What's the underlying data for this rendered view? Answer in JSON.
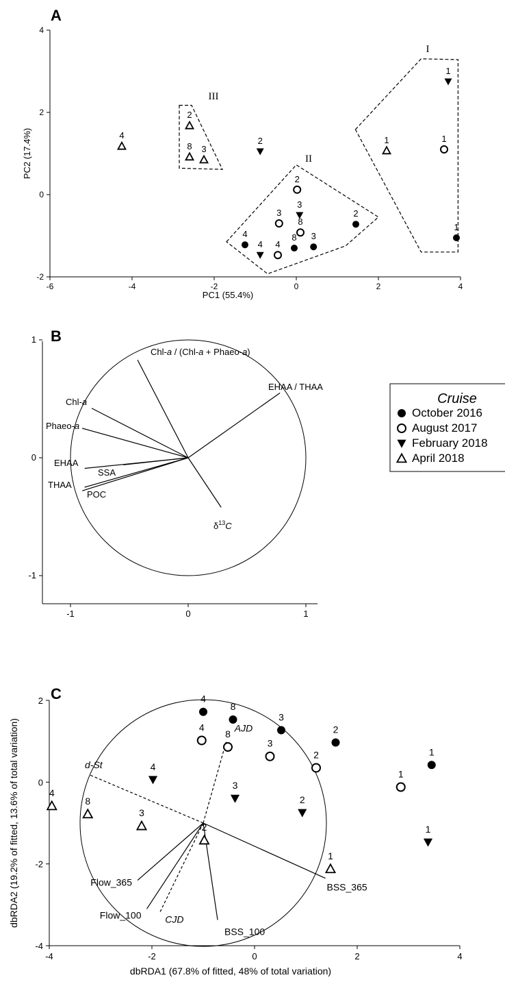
{
  "chart_data": [
    {
      "panel": "A",
      "type": "scatter",
      "xlabel": "PC1 (55.4%)",
      "ylabel": "PC2 (17.4%)",
      "xlim": [
        -6,
        4
      ],
      "ylim": [
        -2,
        4
      ],
      "xticks": [
        "-6",
        "-4",
        "-2",
        "0",
        "2",
        "4"
      ],
      "yticks": [
        "-2",
        "0",
        "2",
        "4"
      ],
      "series": [
        {
          "cruise": "October 2016",
          "marker": "circle-filled",
          "points": [
            {
              "x": 3.9,
              "y": -1.05,
              "label": "1"
            },
            {
              "x": 1.45,
              "y": -0.72,
              "label": "2"
            },
            {
              "x": 0.42,
              "y": -1.27,
              "label": "3"
            },
            {
              "x": -1.25,
              "y": -1.22,
              "label": "4"
            },
            {
              "x": -0.05,
              "y": -1.3,
              "label": "8"
            }
          ]
        },
        {
          "cruise": "August 2017",
          "marker": "circle-open",
          "points": [
            {
              "x": 3.6,
              "y": 1.1,
              "label": "1"
            },
            {
              "x": 0.02,
              "y": 0.12,
              "label": "2"
            },
            {
              "x": -0.42,
              "y": -0.7,
              "label": "3"
            },
            {
              "x": -0.45,
              "y": -1.47,
              "label": "4"
            },
            {
              "x": 0.1,
              "y": -0.92,
              "label": "8"
            }
          ]
        },
        {
          "cruise": "February 2018",
          "marker": "triangle-down-filled",
          "points": [
            {
              "x": 3.7,
              "y": 2.75,
              "label": "1"
            },
            {
              "x": -0.88,
              "y": 1.05,
              "label": "2"
            },
            {
              "x": 0.08,
              "y": -0.5,
              "label": "3"
            },
            {
              "x": -0.88,
              "y": -1.47,
              "label": "4"
            }
          ]
        },
        {
          "cruise": "April 2018",
          "marker": "triangle-up-open",
          "points": [
            {
              "x": 2.2,
              "y": 1.07,
              "label": "1"
            },
            {
              "x": -2.6,
              "y": 1.68,
              "label": "2"
            },
            {
              "x": -2.25,
              "y": 0.85,
              "label": "3"
            },
            {
              "x": -4.25,
              "y": 1.18,
              "label": "4"
            },
            {
              "x": -2.6,
              "y": 0.92,
              "label": "8"
            }
          ]
        }
      ],
      "groups": [
        {
          "label": "I",
          "polygon": [
            [
              1.6,
              1.6
            ],
            [
              3.2,
              3.32
            ],
            [
              4.1,
              3.3
            ],
            [
              4.1,
              -1.38
            ],
            [
              3.2,
              -1.38
            ]
          ],
          "label_at": [
            3.13,
            3.5
          ]
        },
        {
          "label": "II",
          "polygon": [
            [
              -1.7,
              -1.15
            ],
            [
              0.0,
              0.72
            ],
            [
              2.0,
              -0.55
            ],
            [
              1.2,
              -1.25
            ],
            [
              -0.7,
              -1.93
            ]
          ],
          "label_at": [
            0.3,
            0.75
          ]
        },
        {
          "label": "III",
          "polygon": [
            [
              -2.85,
              2.18
            ],
            [
              -2.55,
              2.18
            ],
            [
              -1.8,
              0.62
            ],
            [
              -2.85,
              0.65
            ]
          ],
          "label_at": [
            -2.02,
            2.1
          ]
        }
      ]
    },
    {
      "panel": "B",
      "type": "biplot",
      "xlim": [
        -1.25,
        1.1
      ],
      "ylim": [
        -1.25,
        1.0
      ],
      "xticks": [
        "-1",
        "0",
        "1"
      ],
      "yticks": [
        "-1",
        "0",
        "1"
      ],
      "circle_radius": 1,
      "vectors": [
        {
          "name": "Chl-a / (Chl-a + Phaeo-a)",
          "x": -0.43,
          "y": 0.83
        },
        {
          "name": "Chl-a",
          "x": -0.82,
          "y": 0.42
        },
        {
          "name": "Phaeo-a",
          "x": -0.9,
          "y": 0.25
        },
        {
          "name": "EHAA",
          "x": -0.88,
          "y": -0.09
        },
        {
          "name": "SSA",
          "x": -0.55,
          "y": -0.06
        },
        {
          "name": "THAA",
          "x": -0.9,
          "y": -0.28
        },
        {
          "name": "POC",
          "x": -0.88,
          "y": -0.25
        },
        {
          "name": "EHAA / THAA",
          "x": 0.78,
          "y": 0.55
        },
        {
          "name": "δ13C",
          "x": 0.28,
          "y": -0.42
        }
      ]
    },
    {
      "panel": "C",
      "type": "scatter",
      "xlabel": "dbRDA1 (67.8% of fitted, 48% of total variation)",
      "ylabel": "dbRDA2 (19.2% of fitted, 13.6% of total variation)",
      "xlim": [
        -4,
        4
      ],
      "ylim": [
        -4,
        2
      ],
      "xticks": [
        "-4",
        "-2",
        "0",
        "2",
        "4"
      ],
      "yticks": [
        "-4",
        "-2",
        "0",
        "2"
      ],
      "series": [
        {
          "cruise": "October 2016",
          "marker": "circle-filled",
          "points": [
            {
              "x": 3.45,
              "y": 0.42,
              "label": "1"
            },
            {
              "x": 1.58,
              "y": 0.97,
              "label": "2"
            },
            {
              "x": 0.52,
              "y": 1.27,
              "label": "3"
            },
            {
              "x": -1.0,
              "y": 1.72,
              "label": "4"
            },
            {
              "x": -0.42,
              "y": 1.53,
              "label": "8"
            }
          ]
        },
        {
          "cruise": "August 2017",
          "marker": "circle-open",
          "points": [
            {
              "x": 2.85,
              "y": -0.12,
              "label": "1"
            },
            {
              "x": 1.2,
              "y": 0.35,
              "label": "2"
            },
            {
              "x": 0.3,
              "y": 0.63,
              "label": "3"
            },
            {
              "x": -1.03,
              "y": 1.02,
              "label": "4"
            },
            {
              "x": -0.52,
              "y": 0.86,
              "label": "8"
            }
          ]
        },
        {
          "cruise": "February 2018",
          "marker": "triangle-down-filled",
          "points": [
            {
              "x": 3.38,
              "y": -1.47,
              "label": "1"
            },
            {
              "x": 0.93,
              "y": -0.75,
              "label": "2"
            },
            {
              "x": -0.38,
              "y": -0.4,
              "label": "3"
            },
            {
              "x": -1.98,
              "y": 0.06,
              "label": "4"
            }
          ]
        },
        {
          "cruise": "April 2018",
          "marker": "triangle-up-open",
          "points": [
            {
              "x": 1.48,
              "y": -2.12,
              "label": "1"
            },
            {
              "x": -0.98,
              "y": -1.42,
              "label": "2"
            },
            {
              "x": -2.2,
              "y": -1.07,
              "label": "3"
            },
            {
              "x": -3.95,
              "y": -0.58,
              "label": "4"
            },
            {
              "x": -3.25,
              "y": -0.78,
              "label": "8"
            }
          ]
        }
      ],
      "circle": {
        "center": [
          -1.0,
          -1.0
        ],
        "radius": 2.4
      },
      "vectors": [
        {
          "name": "Flow_365",
          "x": -2.28,
          "y": -2.4,
          "style": "solid"
        },
        {
          "name": "Flow_100",
          "x": -2.1,
          "y": -3.1,
          "style": "solid"
        },
        {
          "name": "BSS_100",
          "x": -0.72,
          "y": -3.37,
          "style": "solid"
        },
        {
          "name": "BSS_365",
          "x": 1.38,
          "y": -2.35,
          "style": "solid"
        },
        {
          "name": "CJD",
          "x": -1.85,
          "y": -3.2,
          "style": "dashed"
        },
        {
          "name": "AJD",
          "x": -0.55,
          "y": 1.0,
          "style": "dashed"
        },
        {
          "name": "d-St",
          "x": -3.2,
          "y": 0.17,
          "style": "dashed"
        }
      ]
    }
  ],
  "panels": {
    "a": {
      "letter": "A",
      "group_labels": [
        "I",
        "II",
        "III"
      ]
    },
    "b": {
      "letter": "B",
      "vector_labels": {
        "chl_ratio": [
          "Chl-",
          "a",
          " / (Chl-",
          "a",
          " + Phaeo-",
          "a",
          ")"
        ],
        "chla": [
          "Chl-",
          "a"
        ],
        "phaeo": [
          "Phaeo-",
          "a"
        ],
        "ehaa": "EHAA",
        "ssa": "SSA",
        "thaa": "THAA",
        "poc": "POC",
        "ehaa_thaa": "EHAA / THAA",
        "d13c_delta": "δ",
        "d13c_sup": "13",
        "d13c_c": "C"
      }
    },
    "c": {
      "letter": "C"
    }
  },
  "legend": {
    "title": "Cruise",
    "items": [
      {
        "label": "October 2016",
        "marker": "circle-filled"
      },
      {
        "label": "August 2017",
        "marker": "circle-open"
      },
      {
        "label": "February 2018",
        "marker": "triangle-down-filled"
      },
      {
        "label": "April 2018",
        "marker": "triangle-up-open"
      }
    ]
  },
  "colors": {
    "ink": "#000000",
    "background": "#ffffff"
  }
}
